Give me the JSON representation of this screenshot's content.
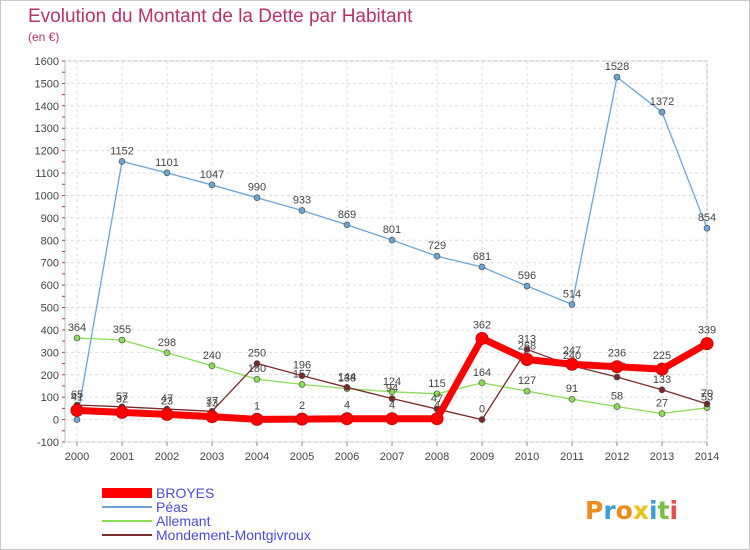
{
  "title": "Evolution du Montant de la Dette par Habitant",
  "subtitle": "(en €)",
  "logo": {
    "text": "Proxiti"
  },
  "chart_data": {
    "type": "line",
    "title": "Evolution du Montant de la Dette par Habitant",
    "subtitle": "(en €)",
    "ylim": [
      -100,
      1600
    ],
    "y_ticks": [
      -100,
      0,
      100,
      200,
      300,
      400,
      500,
      600,
      700,
      800,
      900,
      1000,
      1100,
      1200,
      1300,
      1400,
      1500,
      1600
    ],
    "x": [
      "2000",
      "2001",
      "2002",
      "2003",
      "2004",
      "2005",
      "2006",
      "2007",
      "2008",
      "2009",
      "2010",
      "2011",
      "2012",
      "2013",
      "2014"
    ],
    "grid": true,
    "legend_position": "bottom-left",
    "series": [
      {
        "name": "BROYES",
        "color": "#ff0000",
        "values": [
          41,
          32,
          23,
          13,
          1,
          2,
          4,
          4,
          4,
          362,
          268,
          247,
          236,
          225,
          339
        ]
      },
      {
        "name": "Péas",
        "color": "#6aa5d6",
        "values": [
          0,
          1152,
          1101,
          1047,
          990,
          933,
          869,
          801,
          729,
          681,
          596,
          514,
          1528,
          1372,
          854
        ]
      },
      {
        "name": "Allemant",
        "color": "#88dd55",
        "values": [
          364,
          355,
          298,
          240,
          180,
          157,
          138,
          124,
          115,
          164,
          127,
          91,
          58,
          27,
          53
        ]
      },
      {
        "name": "Mondement-Montgivroux",
        "color": "#7a2a2a",
        "values": [
          65,
          57,
          47,
          37,
          250,
          196,
          144,
          94,
          47,
          0,
          313,
          240,
          190,
          133,
          70
        ]
      }
    ]
  }
}
